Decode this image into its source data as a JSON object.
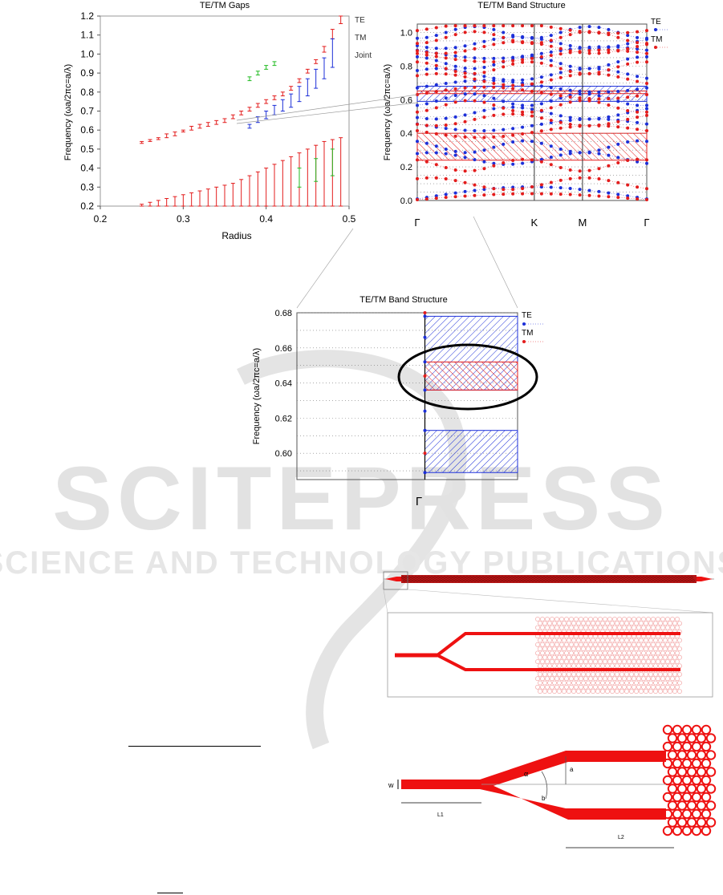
{
  "watermark": {
    "main": "SCITEPRESS",
    "sub": "SCIENCE AND TECHNOLOGY PUBLICATIONS"
  },
  "colors": {
    "te": "#e31c1c",
    "tm": "#1c2fd8",
    "joint": "#22bb22",
    "grid": "#555555",
    "device": "#ee1111"
  },
  "gaps_chart": {
    "title": "TE/TM Gaps",
    "xlabel": "Radius",
    "ylabel": "Frequency (ωa/2πc=a/λ)",
    "x_ticks": [
      "0.2",
      "0.3",
      "0.4",
      "0.5"
    ],
    "y_ticks": [
      "0.2",
      "0.3",
      "0.4",
      "0.5",
      "0.6",
      "0.7",
      "0.8",
      "0.9",
      "1.0",
      "1.1",
      "1.2"
    ],
    "legend": [
      "TE",
      "TM",
      "Joint"
    ]
  },
  "band_chart": {
    "title": "TE/TM Band Structure",
    "ylabel": "Frequency (ωa/2πc=a/λ)",
    "y_ticks": [
      "0.0",
      "0.2",
      "0.4",
      "0.6",
      "0.8",
      "1.0"
    ],
    "k_labels": [
      "Γ",
      "K",
      "M",
      "Γ"
    ],
    "legend": [
      "TE",
      "TM"
    ]
  },
  "zoom_chart": {
    "title": "TE/TM Band Structure",
    "ylabel": "Frequency (ωa/2πc=a/λ)",
    "y_ticks": [
      "0.60",
      "0.62",
      "0.64",
      "0.66",
      "0.68"
    ],
    "k_label": "Γ",
    "legend": [
      "TE",
      "TM"
    ]
  },
  "device": {
    "labels": {
      "w": "w",
      "l1": "L1",
      "l2": "L2",
      "alpha": "α",
      "a": "a",
      "b": "b"
    }
  },
  "chart_data": [
    {
      "type": "scatter",
      "title": "TE/TM Gaps",
      "xlabel": "Radius",
      "ylabel": "Frequency (ωa/2πc=a/λ)",
      "xlim": [
        0.2,
        0.5
      ],
      "ylim": [
        0.2,
        1.2
      ],
      "series": [
        {
          "name": "TE",
          "x": [
            0.25,
            0.26,
            0.27,
            0.28,
            0.29,
            0.3,
            0.31,
            0.32,
            0.33,
            0.34,
            0.35,
            0.36,
            0.37,
            0.38,
            0.39,
            0.4,
            0.41,
            0.42,
            0.43,
            0.44,
            0.45,
            0.46,
            0.47,
            0.48,
            0.49
          ],
          "lower": [
            0.2,
            0.2,
            0.2,
            0.2,
            0.2,
            0.2,
            0.2,
            0.2,
            0.2,
            0.2,
            0.2,
            0.2,
            0.2,
            0.2,
            0.2,
            0.2,
            0.2,
            0.2,
            0.2,
            0.2,
            0.2,
            0.2,
            0.2,
            0.2,
            0.2
          ],
          "upper": [
            0.21,
            0.22,
            0.23,
            0.24,
            0.25,
            0.26,
            0.27,
            0.28,
            0.29,
            0.3,
            0.31,
            0.32,
            0.34,
            0.36,
            0.38,
            0.4,
            0.42,
            0.44,
            0.46,
            0.48,
            0.5,
            0.52,
            0.54,
            0.55,
            0.56
          ],
          "lower2": [
            0.53,
            0.54,
            0.55,
            0.56,
            0.57,
            0.59,
            0.6,
            0.61,
            0.62,
            0.63,
            0.64,
            0.66,
            0.68,
            0.7,
            0.72,
            0.74,
            0.76,
            0.78,
            0.81,
            0.85,
            0.9,
            0.95,
            1.01,
            1.08,
            1.16
          ],
          "upper2": [
            0.54,
            0.55,
            0.56,
            0.58,
            0.59,
            0.6,
            0.62,
            0.63,
            0.64,
            0.65,
            0.66,
            0.68,
            0.7,
            0.72,
            0.74,
            0.76,
            0.78,
            0.8,
            0.83,
            0.87,
            0.92,
            0.97,
            1.04,
            1.13,
            1.2
          ]
        },
        {
          "name": "TM",
          "x": [
            0.38,
            0.39,
            0.4,
            0.41,
            0.42,
            0.43,
            0.44,
            0.45,
            0.46,
            0.47,
            0.48
          ],
          "lower": [
            0.61,
            0.64,
            0.66,
            0.68,
            0.7,
            0.72,
            0.75,
            0.78,
            0.82,
            0.87,
            0.93
          ],
          "upper": [
            0.63,
            0.67,
            0.7,
            0.73,
            0.76,
            0.79,
            0.83,
            0.87,
            0.92,
            0.98,
            1.08
          ]
        },
        {
          "name": "Joint",
          "x": [
            0.38,
            0.39,
            0.4,
            0.41,
            0.44,
            0.46,
            0.48
          ],
          "lower": [
            0.86,
            0.89,
            0.92,
            0.94,
            0.3,
            0.33,
            0.36
          ],
          "upper": [
            0.88,
            0.91,
            0.94,
            0.96,
            0.4,
            0.45,
            0.5
          ]
        }
      ]
    },
    {
      "type": "scatter",
      "title": "TE/TM Band Structure",
      "ylabel": "Frequency (ωa/2πc=a/λ)",
      "ylim": [
        0.0,
        1.05
      ],
      "x_categories": [
        "Γ",
        "K",
        "M",
        "Γ"
      ],
      "gaps": [
        {
          "name": "TM",
          "from": 0.24,
          "to": 0.4
        },
        {
          "name": "TE",
          "from": 0.59,
          "to": 0.68
        },
        {
          "name": "TM",
          "from": 0.636,
          "to": 0.652
        }
      ],
      "series": [
        {
          "name": "TE",
          "band_freqs": [
            0.06,
            0.25,
            0.32,
            0.45,
            0.52,
            0.6,
            0.68,
            0.75,
            0.82,
            0.88,
            0.94,
            1.0
          ]
        },
        {
          "name": "TM",
          "band_freqs": [
            0.03,
            0.1,
            0.21,
            0.41,
            0.48,
            0.56,
            0.64,
            0.72,
            0.79,
            0.86,
            0.91,
            0.97,
            1.03
          ]
        }
      ]
    },
    {
      "type": "scatter",
      "title": "TE/TM Band Structure",
      "ylabel": "Frequency (ωa/2πc=a/λ)",
      "ylim": [
        0.585,
        0.68
      ],
      "x_categories": [
        "Γ"
      ],
      "gaps": [
        {
          "name": "TE",
          "from": 0.589,
          "to": 0.613
        },
        {
          "name": "TE",
          "from": 0.636,
          "to": 0.678
        },
        {
          "name": "TM",
          "from": 0.636,
          "to": 0.652
        }
      ],
      "series": [
        {
          "name": "TE",
          "y": [
            0.589,
            0.613,
            0.624,
            0.636,
            0.652,
            0.666,
            0.678
          ]
        },
        {
          "name": "TM",
          "y": [
            0.6,
            0.644,
            0.68
          ]
        }
      ]
    }
  ]
}
